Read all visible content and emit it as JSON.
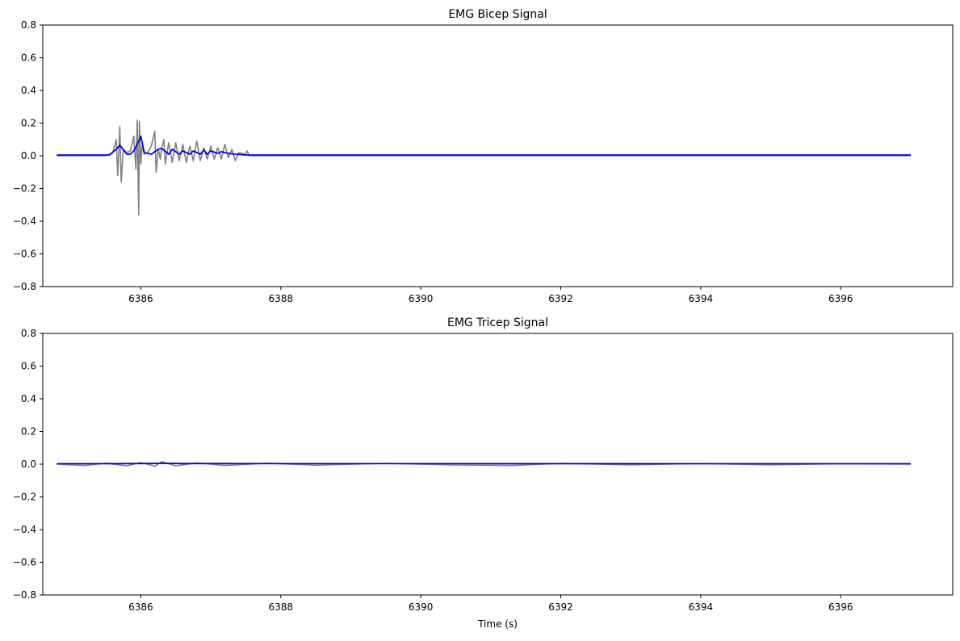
{
  "chart_data": [
    {
      "type": "line",
      "title": "EMG Bicep Signal",
      "xlabel": "",
      "ylabel": "",
      "xlim": [
        6384.6,
        6397.6
      ],
      "ylim": [
        -0.8,
        0.8
      ],
      "xticks": [
        6386,
        6388,
        6390,
        6392,
        6394,
        6396
      ],
      "yticks": [
        -0.8,
        -0.6,
        -0.4,
        -0.2,
        0.0,
        0.2,
        0.4,
        0.6,
        0.8
      ],
      "xtick_labels": [
        "6386",
        "6388",
        "6390",
        "6392",
        "6394",
        "6396"
      ],
      "ytick_labels": [
        "−0.8",
        "−0.6",
        "−0.4",
        "−0.2",
        "0.0",
        "0.2",
        "0.4",
        "0.6",
        "0.8"
      ],
      "grid": false,
      "colors": {
        "raw": "#808080",
        "envelope": "#0000ff"
      },
      "series": [
        {
          "style": "raw",
          "x": [
            6384.8,
            6385.5,
            6385.6,
            6385.65,
            6385.67,
            6385.7,
            6385.72,
            6385.75,
            6385.8,
            6385.85,
            6385.9,
            6385.93,
            6385.95,
            6385.97,
            6385.98,
            6386.0,
            6386.02,
            6386.05,
            6386.1,
            6386.15,
            6386.2,
            6386.22,
            6386.25,
            6386.28,
            6386.3,
            6386.33,
            6386.35,
            6386.4,
            6386.45,
            6386.5,
            6386.55,
            6386.6,
            6386.65,
            6386.7,
            6386.75,
            6386.8,
            6386.85,
            6386.9,
            6386.95,
            6387.0,
            6387.05,
            6387.1,
            6387.15,
            6387.2,
            6387.25,
            6387.3,
            6387.35,
            6387.4,
            6387.5,
            6387.52,
            6387.55,
            6387.6,
            6397.0
          ],
          "y": [
            0.0,
            0.0,
            0.02,
            0.1,
            -0.12,
            0.18,
            -0.16,
            0.04,
            0.02,
            0.03,
            0.12,
            -0.08,
            0.22,
            -0.36,
            0.21,
            -0.05,
            0.06,
            0.01,
            0.02,
            0.06,
            0.15,
            -0.1,
            0.04,
            -0.02,
            0.05,
            0.1,
            -0.05,
            0.08,
            -0.04,
            0.08,
            -0.03,
            0.07,
            -0.04,
            0.06,
            -0.03,
            0.09,
            -0.03,
            0.05,
            -0.02,
            0.06,
            -0.02,
            0.05,
            -0.02,
            0.07,
            -0.01,
            0.04,
            -0.03,
            0.02,
            0.01,
            0.03,
            0.0,
            0.0,
            0.0
          ]
        },
        {
          "style": "envelope",
          "x": [
            6384.8,
            6385.55,
            6385.65,
            6385.7,
            6385.8,
            6385.85,
            6385.9,
            6385.95,
            6386.0,
            6386.05,
            6386.15,
            6386.25,
            6386.3,
            6386.4,
            6386.45,
            6386.55,
            6386.6,
            6386.7,
            6386.75,
            6386.85,
            6386.9,
            6386.95,
            6387.0,
            6387.1,
            6387.15,
            6387.25,
            6387.35,
            6387.5,
            6397.0
          ],
          "y": [
            0.005,
            0.005,
            0.04,
            0.065,
            0.01,
            0.01,
            0.03,
            0.07,
            0.12,
            0.02,
            0.01,
            0.04,
            0.045,
            0.01,
            0.04,
            0.01,
            0.03,
            0.01,
            0.03,
            0.01,
            0.035,
            0.01,
            0.03,
            0.015,
            0.025,
            0.015,
            0.01,
            0.005,
            0.005
          ]
        }
      ]
    },
    {
      "type": "line",
      "title": "EMG Tricep Signal",
      "xlabel": "Time (s)",
      "ylabel": "",
      "xlim": [
        6384.6,
        6397.6
      ],
      "ylim": [
        -0.8,
        0.8
      ],
      "xticks": [
        6386,
        6388,
        6390,
        6392,
        6394,
        6396
      ],
      "yticks": [
        -0.8,
        -0.6,
        -0.4,
        -0.2,
        0.0,
        0.2,
        0.4,
        0.6,
        0.8
      ],
      "xtick_labels": [
        "6386",
        "6388",
        "6390",
        "6392",
        "6394",
        "6396"
      ],
      "ytick_labels": [
        "−0.8",
        "−0.6",
        "−0.4",
        "−0.2",
        "0.0",
        "0.2",
        "0.4",
        "0.6",
        "0.8"
      ],
      "grid": false,
      "colors": {
        "raw": "#808080",
        "envelope": "#0000ff"
      },
      "series": [
        {
          "style": "raw",
          "x": [
            6384.8,
            6385.2,
            6385.5,
            6385.8,
            6386.0,
            6386.2,
            6386.3,
            6386.5,
            6386.8,
            6387.2,
            6387.8,
            6388.5,
            6389.5,
            6390.5,
            6391.3,
            6392.0,
            6393.0,
            6394.0,
            6395.0,
            6396.0,
            6397.0
          ],
          "y": [
            0.0,
            -0.008,
            0.006,
            -0.01,
            0.01,
            -0.012,
            0.015,
            -0.01,
            0.008,
            -0.008,
            0.006,
            -0.006,
            0.005,
            -0.005,
            -0.008,
            0.005,
            -0.004,
            0.004,
            -0.004,
            0.003,
            0.0
          ]
        },
        {
          "style": "envelope",
          "x": [
            6384.8,
            6386.0,
            6386.3,
            6386.6,
            6397.0
          ],
          "y": [
            0.003,
            0.004,
            0.006,
            0.004,
            0.003
          ]
        }
      ]
    }
  ]
}
